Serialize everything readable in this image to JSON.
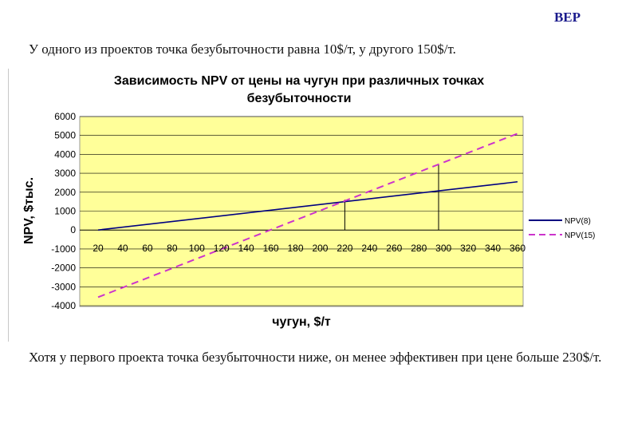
{
  "slide": {
    "tag": "BEP",
    "intro": "У одного из проектов точка безубыточности равна 10$/т, у другого 150$/т.",
    "conclusion": "Хотя у первого проекта точка безубыточности ниже, он менее эффективен при цене больше 230$/т."
  },
  "colors": {
    "plot_background": "#ffff99",
    "grid": "#000000",
    "series_solid": "#000080",
    "series_dashed": "#cc33cc"
  },
  "chart_data": {
    "type": "line",
    "title_lines": [
      "Зависимость NPV от цены на чугун при различных точках",
      "безубыточности"
    ],
    "xlabel": "чугун, $/т",
    "ylabel": "NPV, $тыс.",
    "xlim": [
      20,
      360
    ],
    "ylim": [
      -4000,
      6000
    ],
    "x_ticks": [
      20,
      40,
      60,
      80,
      100,
      120,
      140,
      160,
      180,
      200,
      220,
      240,
      260,
      280,
      300,
      320,
      340,
      360
    ],
    "y_ticks": [
      6000,
      5000,
      4000,
      3000,
      2000,
      1000,
      0,
      -1000,
      -2000,
      -3000,
      -4000
    ],
    "grid": "horizontal",
    "legend_position": "right",
    "series": [
      {
        "name": "NPV(8)",
        "style": "solid",
        "x": [
          20,
          360
        ],
        "y": [
          0,
          2550
        ]
      },
      {
        "name": "NPV(15)",
        "style": "dashed",
        "x": [
          20,
          360
        ],
        "y": [
          -3550,
          5100
        ]
      }
    ],
    "markers": [
      {
        "x": 220,
        "y_from": 0,
        "y_to": 1600
      },
      {
        "x": 296,
        "y_from": 0,
        "y_to": 3450
      }
    ]
  }
}
